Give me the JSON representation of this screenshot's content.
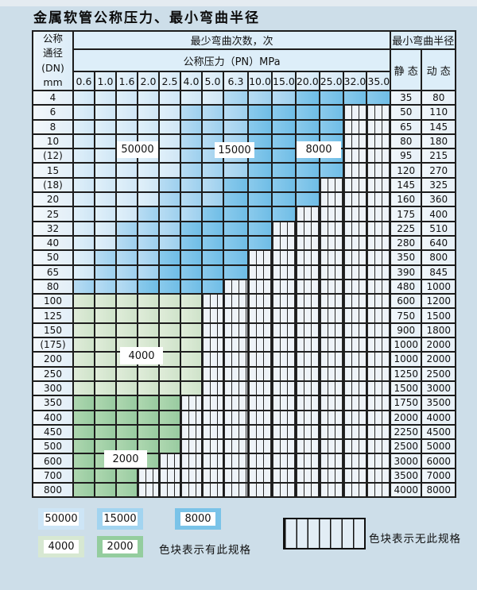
{
  "title": "金属软管公称压力、最小弯曲半径",
  "table": {
    "dn_header_lines": [
      "公称",
      "通径",
      "(DN)",
      "mm"
    ],
    "bend_cycles_header": "最少弯曲次数，次",
    "pressure_header": "公称压力（PN）MPa",
    "pressure_columns": [
      "0.6",
      "1.0",
      "1.6",
      "2.0",
      "2.5",
      "4.0",
      "5.0",
      "6.3",
      "10.0",
      "15.0",
      "20.0",
      "25.0",
      "32.0",
      "35.0"
    ],
    "radius_header": "最小弯曲半径",
    "static_header": "静 态",
    "dynamic_header": "动 态",
    "rows": [
      {
        "dn": "4",
        "colored": 14,
        "shade": "blue",
        "static": "35",
        "dynamic": "80"
      },
      {
        "dn": "6",
        "colored": 12,
        "shade": "blue",
        "static": "50",
        "dynamic": "110"
      },
      {
        "dn": "8",
        "colored": 12,
        "shade": "blue",
        "static": "65",
        "dynamic": "145"
      },
      {
        "dn": "10",
        "colored": 12,
        "shade": "blue",
        "static": "80",
        "dynamic": "180"
      },
      {
        "dn": "(12)",
        "colored": 12,
        "shade": "blue",
        "static": "95",
        "dynamic": "215"
      },
      {
        "dn": "15",
        "colored": 12,
        "shade": "blue",
        "static": "120",
        "dynamic": "270"
      },
      {
        "dn": "(18)",
        "colored": 11,
        "shade": "blue",
        "static": "145",
        "dynamic": "325"
      },
      {
        "dn": "20",
        "colored": 11,
        "shade": "blue",
        "static": "160",
        "dynamic": "360"
      },
      {
        "dn": "25",
        "colored": 10,
        "shade": "blue",
        "static": "175",
        "dynamic": "400"
      },
      {
        "dn": "32",
        "colored": 9,
        "shade": "blue",
        "static": "225",
        "dynamic": "510"
      },
      {
        "dn": "40",
        "colored": 9,
        "shade": "blue",
        "static": "280",
        "dynamic": "640"
      },
      {
        "dn": "50",
        "colored": 8,
        "shade": "blue",
        "static": "350",
        "dynamic": "800"
      },
      {
        "dn": "65",
        "colored": 8,
        "shade": "blue",
        "static": "390",
        "dynamic": "845"
      },
      {
        "dn": "80",
        "colored": 7,
        "shade": "blue",
        "static": "480",
        "dynamic": "1000"
      },
      {
        "dn": "100",
        "colored": 6,
        "shade": "green-light",
        "static": "600",
        "dynamic": "1200"
      },
      {
        "dn": "125",
        "colored": 6,
        "shade": "green-light",
        "static": "750",
        "dynamic": "1500"
      },
      {
        "dn": "150",
        "colored": 6,
        "shade": "green-light",
        "static": "900",
        "dynamic": "1800"
      },
      {
        "dn": "(175)",
        "colored": 6,
        "shade": "green-light",
        "static": "1000",
        "dynamic": "2000"
      },
      {
        "dn": "200",
        "colored": 6,
        "shade": "green-light",
        "static": "1000",
        "dynamic": "2000"
      },
      {
        "dn": "250",
        "colored": 6,
        "shade": "green-light",
        "static": "1250",
        "dynamic": "2500"
      },
      {
        "dn": "300",
        "colored": 6,
        "shade": "green-light",
        "static": "1500",
        "dynamic": "3000"
      },
      {
        "dn": "350",
        "colored": 5,
        "shade": "green-dark",
        "static": "1750",
        "dynamic": "3500"
      },
      {
        "dn": "400",
        "colored": 5,
        "shade": "green-dark",
        "static": "2000",
        "dynamic": "4000"
      },
      {
        "dn": "450",
        "colored": 5,
        "shade": "green-dark",
        "static": "2250",
        "dynamic": "4500"
      },
      {
        "dn": "500",
        "colored": 5,
        "shade": "green-dark",
        "static": "2500",
        "dynamic": "5000"
      },
      {
        "dn": "600",
        "colored": 4,
        "shade": "green-dark",
        "static": "3000",
        "dynamic": "6000"
      },
      {
        "dn": "700",
        "colored": 3,
        "shade": "green-dark",
        "static": "3500",
        "dynamic": "7000"
      },
      {
        "dn": "800",
        "colored": 3,
        "shade": "green-dark",
        "static": "4000",
        "dynamic": "8000"
      }
    ],
    "overlay_labels": [
      {
        "text": "50000"
      },
      {
        "text": "15000"
      },
      {
        "text": "8000"
      },
      {
        "text": "4000"
      },
      {
        "text": "2000"
      }
    ]
  },
  "legend": {
    "swatches": [
      {
        "value": "50000",
        "color": "#cde5f6"
      },
      {
        "value": "15000",
        "color": "#a2d4f0"
      },
      {
        "value": "8000",
        "color": "#7ac3e8"
      },
      {
        "value": "4000",
        "color": "#d7e8d2"
      },
      {
        "value": "2000",
        "color": "#94cd9e"
      }
    ],
    "has_spec_text": "色块表示有此规格",
    "no_spec_text": "色块表示无此规格"
  },
  "colors": {
    "band_50000": "#d6eaf8",
    "band_15000": "#abd8f1",
    "band_8000": "#7fc5e9",
    "band_4000": "#d9e9d4",
    "band_2000": "#a4d3a8",
    "hatch_background": "#eef3f8",
    "grid_line": "#1d1d1d",
    "page_background": "#cddee9"
  }
}
